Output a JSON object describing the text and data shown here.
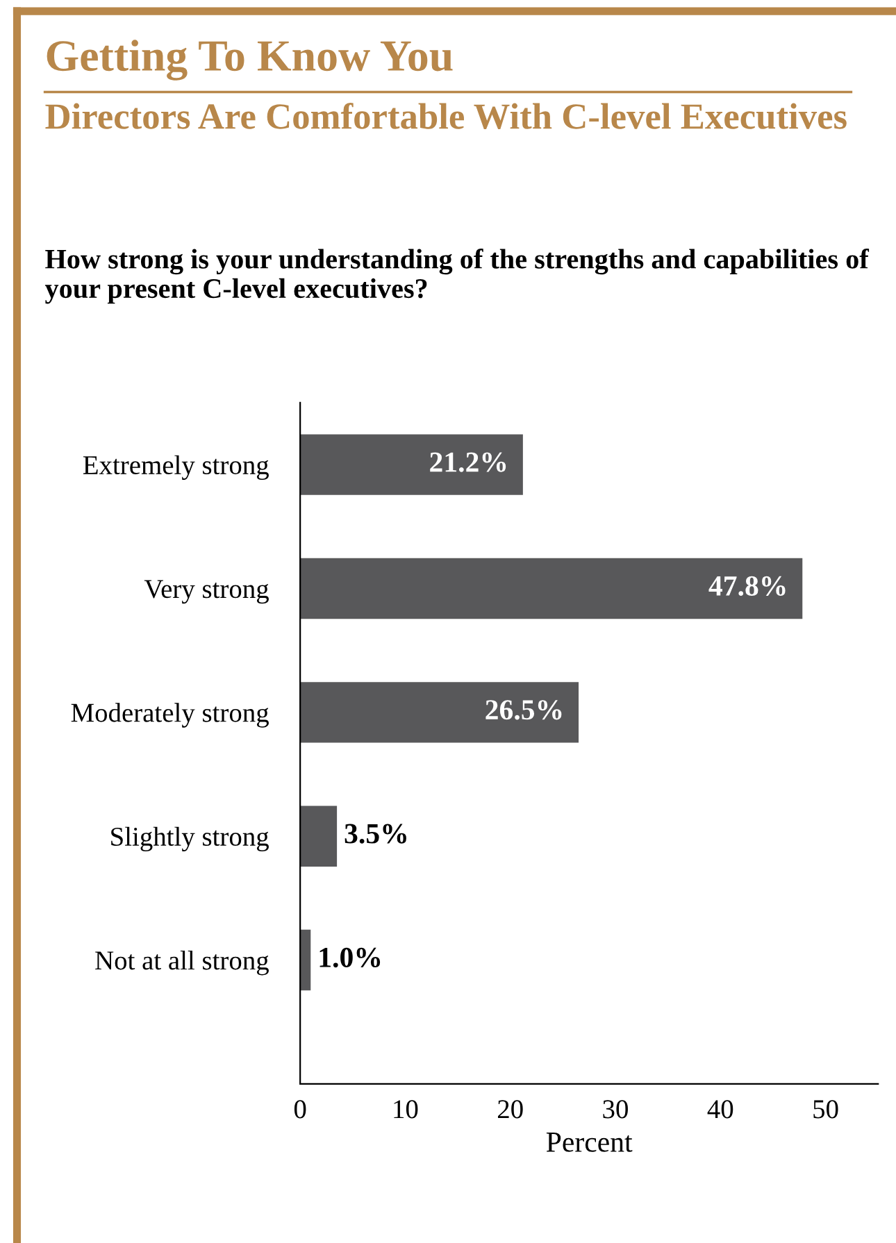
{
  "chart_data": {
    "type": "bar",
    "orientation": "horizontal",
    "title": "Getting To Know You",
    "subtitle": "Directors Are Comfortable With C-level Executives",
    "annotations": [
      "How strong is your understanding of the strengths and capabilities of your present C-level executives?"
    ],
    "categories": [
      "Extremely strong",
      "Very strong",
      "Moderately strong",
      "Slightly strong",
      "Not at all strong"
    ],
    "values": [
      21.2,
      47.8,
      26.5,
      3.5,
      1.0
    ],
    "value_labels": [
      "21.2%",
      "47.8%",
      "26.5%",
      "3.5%",
      "1.0%"
    ],
    "color": "#58585a",
    "xlabel": "Percent",
    "xlim": [
      0,
      55
    ],
    "xticks": [
      0,
      10,
      20,
      30,
      40,
      50
    ],
    "grid": false,
    "legend": false
  }
}
